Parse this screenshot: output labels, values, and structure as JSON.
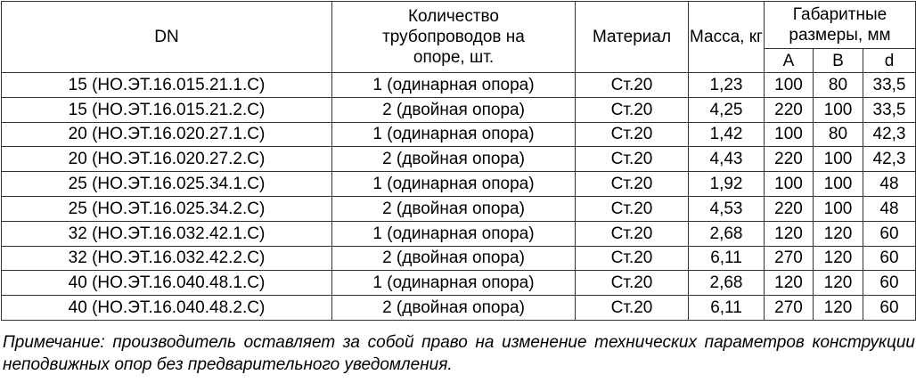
{
  "header": {
    "dn": "DN",
    "quantity": "Количество трубопроводов на опоре, шт.",
    "material": "Материал",
    "mass": "Масса, кг",
    "dimensions": "Габаритные размеры, мм",
    "dim_a": "A",
    "dim_b": "B",
    "dim_d": "d"
  },
  "rows": [
    {
      "dn": "15 (НО.ЭТ.16.015.21.1.С)",
      "qty": "1 (одинарная опора)",
      "material": "Ст.20",
      "mass": "1,23",
      "a": "100",
      "b": "80",
      "d": "33,5"
    },
    {
      "dn": "15 (НО.ЭТ.16.015.21.2.С)",
      "qty": "2 (двойная опора)",
      "material": "Ст.20",
      "mass": "4,25",
      "a": "220",
      "b": "100",
      "d": "33,5"
    },
    {
      "dn": "20 (НО.ЭТ.16.020.27.1.С)",
      "qty": "1 (одинарная опора)",
      "material": "Ст.20",
      "mass": "1,42",
      "a": "100",
      "b": "80",
      "d": "42,3"
    },
    {
      "dn": "20 (НО.ЭТ.16.020.27.2.С)",
      "qty": "2 (двойная опора)",
      "material": "Ст.20",
      "mass": "4,43",
      "a": "220",
      "b": "100",
      "d": "42,3"
    },
    {
      "dn": "25 (НО.ЭТ.16.025.34.1.С)",
      "qty": "1 (одинарная опора)",
      "material": "Ст.20",
      "mass": "1,92",
      "a": "100",
      "b": "100",
      "d": "48"
    },
    {
      "dn": "25 (НО.ЭТ.16.025.34.2.С)",
      "qty": "2 (двойная опора)",
      "material": "Ст.20",
      "mass": "4,53",
      "a": "220",
      "b": "100",
      "d": "48"
    },
    {
      "dn": "32 (НО.ЭТ.16.032.42.1.С)",
      "qty": "1 (одинарная опора)",
      "material": "Ст.20",
      "mass": "2,68",
      "a": "120",
      "b": "120",
      "d": "60"
    },
    {
      "dn": "32 (НО.ЭТ.16.032.42.2.С)",
      "qty": "2 (двойная опора)",
      "material": "Ст.20",
      "mass": "6,11",
      "a": "270",
      "b": "120",
      "d": "60"
    },
    {
      "dn": "40 (НО.ЭТ.16.040.48.1.С)",
      "qty": "1 (одинарная опора)",
      "material": "Ст.20",
      "mass": "2,68",
      "a": "120",
      "b": "120",
      "d": "60"
    },
    {
      "dn": "40 (НО.ЭТ.16.040.48.2.С)",
      "qty": "2 (двойная опора)",
      "material": "Ст.20",
      "mass": "6,11",
      "a": "270",
      "b": "120",
      "d": "60"
    }
  ],
  "note": "Примечание: производитель оставляет за собой право на изменение технических параметров конструкции неподвижных опор без предварительного уведомления."
}
